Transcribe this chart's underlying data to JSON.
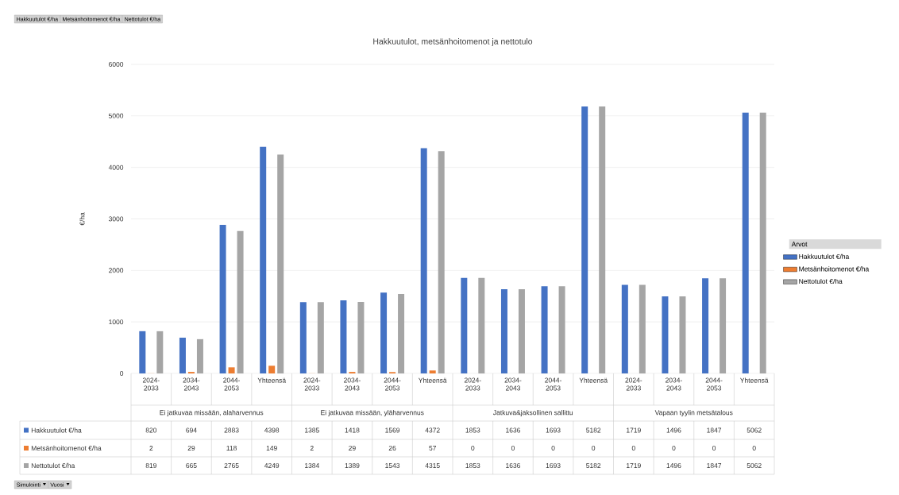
{
  "chart_data": {
    "type": "bar",
    "title": "Hakkuutulot, metsänhoitomenot ja nettotulo",
    "ylabel": "€/ha",
    "legend_title": "Arvot",
    "categories": [
      "2024-2033",
      "2034-2043",
      "2044-2053",
      "Yhteensä",
      "2024-2033",
      "2034-2043",
      "2044-2053",
      "Yhteensä",
      "2024-2033",
      "2034-2043",
      "2044-2053",
      "Yhteensä",
      "2024-2033",
      "2034-2043",
      "2044-2053",
      "Yhteensä"
    ],
    "series": [
      {
        "name": "Hakkuutulot €/ha",
        "color": "#4472c4",
        "values": [
          820,
          694,
          2883,
          4398,
          1385,
          1418,
          1569,
          4372,
          1853,
          1636,
          1693,
          5182,
          1719,
          1496,
          1847,
          5062
        ]
      },
      {
        "name": "Metsänhoitomenot €/ha",
        "color": "#ed7d31",
        "values": [
          2,
          29,
          118,
          149,
          2,
          29,
          26,
          57,
          0,
          0,
          0,
          0,
          0,
          0,
          0,
          0
        ]
      },
      {
        "name": "Nettotulot €/ha",
        "color": "#a5a5a5",
        "values": [
          819,
          665,
          2765,
          4249,
          1384,
          1389,
          1543,
          4315,
          1853,
          1636,
          1693,
          5182,
          1719,
          1496,
          1847,
          5062
        ]
      }
    ],
    "ylim": [
      0,
      6000
    ],
    "yticks": [
      0,
      1000,
      2000,
      3000,
      4000,
      5000,
      6000
    ],
    "grid": "y",
    "legend": "right",
    "data_labels": true,
    "annotations": [
      "Ei jatkuvaa missään, alaharvennus",
      "Ei jatkuvaa missään, yläharvennus",
      "Jatkuva&jaksollinen sallittu",
      "Vapaan tyylin metsätalous",
      "Hakkuutulot €/ha",
      "Metsänhoitomenot €/ha",
      "Nettotulot €/ha",
      "Simulointi",
      "Vuosi"
    ]
  }
}
